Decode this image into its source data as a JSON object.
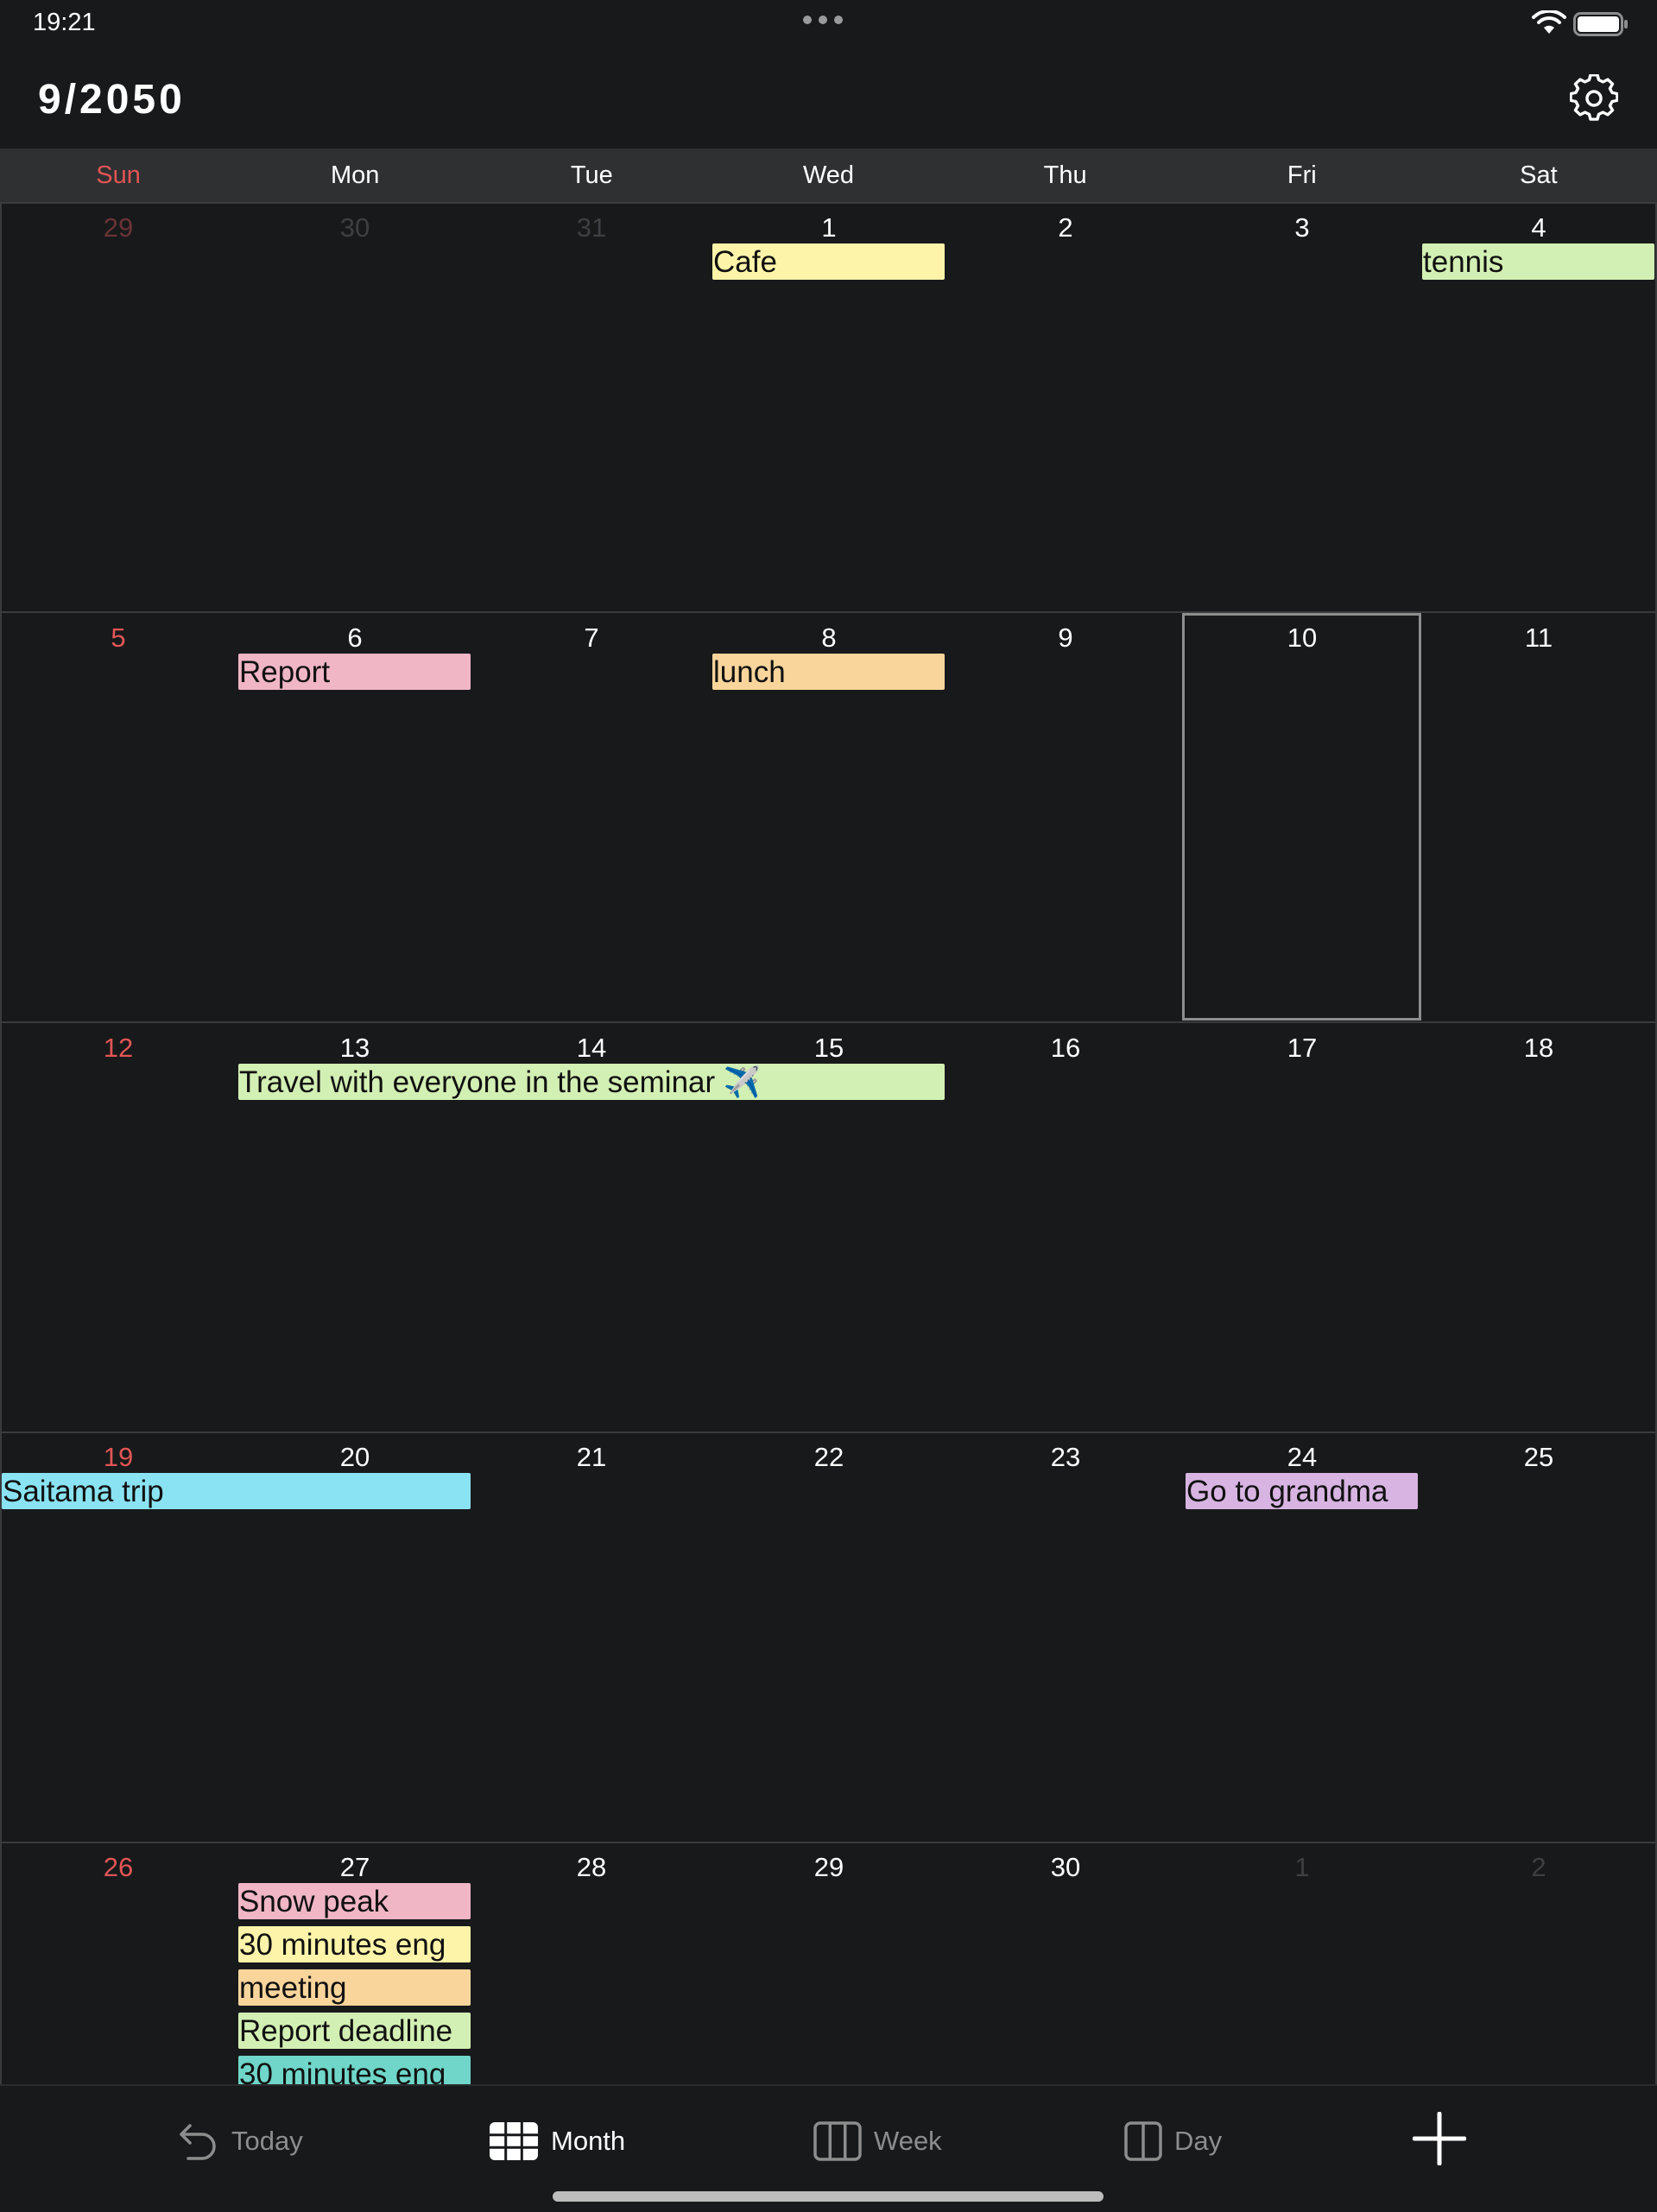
{
  "status_bar": {
    "time": "19:21"
  },
  "header": {
    "title": "9/2050"
  },
  "weekdays": [
    "Sun",
    "Mon",
    "Tue",
    "Wed",
    "Thu",
    "Fri",
    "Sat"
  ],
  "calendar": {
    "weeks": [
      [
        "29",
        "30",
        "31",
        "1",
        "2",
        "3",
        "4"
      ],
      [
        "5",
        "6",
        "7",
        "8",
        "9",
        "10",
        "11"
      ],
      [
        "12",
        "13",
        "14",
        "15",
        "16",
        "17",
        "18"
      ],
      [
        "19",
        "20",
        "21",
        "22",
        "23",
        "24",
        "25"
      ],
      [
        "26",
        "27",
        "28",
        "29",
        "30",
        "1",
        "2"
      ]
    ],
    "events": [
      {
        "label": "Cafe",
        "week": 0,
        "start": 3,
        "span": 1,
        "row": 0,
        "color": "#fdf4a9"
      },
      {
        "label": "tennis",
        "week": 0,
        "start": 6,
        "span": 1,
        "row": 0,
        "color": "#d3f0b4"
      },
      {
        "label": "Report",
        "week": 1,
        "start": 1,
        "span": 1,
        "row": 0,
        "color": "#f0b6c6"
      },
      {
        "label": "lunch",
        "week": 1,
        "start": 3,
        "span": 1,
        "row": 0,
        "color": "#f9d59c"
      },
      {
        "label": "Travel with everyone in the seminar ✈️",
        "week": 2,
        "start": 1,
        "span": 3,
        "row": 0,
        "color": "#d3f0b4"
      },
      {
        "label": "Saitama trip",
        "week": 3,
        "start": 0,
        "span": 2,
        "row": 0,
        "color": "#8ae3f2"
      },
      {
        "label": "Go to grandma",
        "week": 3,
        "start": 5,
        "span": 1,
        "row": 0,
        "color": "#d8b4e2"
      },
      {
        "label": "Snow peak",
        "week": 4,
        "start": 1,
        "span": 1,
        "row": 0,
        "color": "#f0b6c6"
      },
      {
        "label": "30 minutes eng",
        "week": 4,
        "start": 1,
        "span": 1,
        "row": 1,
        "color": "#fdf4a9"
      },
      {
        "label": "meeting",
        "week": 4,
        "start": 1,
        "span": 1,
        "row": 2,
        "color": "#f9d59c"
      },
      {
        "label": "Report deadline",
        "week": 4,
        "start": 1,
        "span": 1,
        "row": 3,
        "color": "#d3f0b4"
      },
      {
        "label": "30 minutes eng",
        "week": 4,
        "start": 1,
        "span": 1,
        "row": 4,
        "color": "#6fd6c9"
      }
    ]
  },
  "tab_bar": {
    "today_label": "Today",
    "month_label": "Month",
    "week_label": "Week",
    "day_label": "Day"
  }
}
